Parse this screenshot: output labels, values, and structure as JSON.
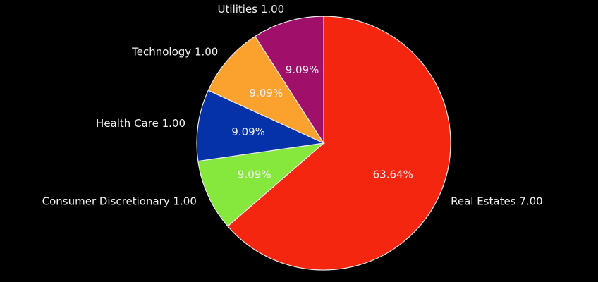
{
  "chart_data": {
    "type": "pie",
    "categories": [
      "Real Estates",
      "Consumer Discretionary",
      "Health Care",
      "Technology",
      "Utilities"
    ],
    "values": [
      7,
      1,
      1,
      1,
      1
    ],
    "value_labels": [
      "7.00",
      "1.00",
      "1.00",
      "1.00",
      "1.00"
    ],
    "percent_labels": [
      "63.64%",
      "9.09%",
      "9.09%",
      "9.09%",
      "9.09%"
    ],
    "colors": [
      "#f5260f",
      "#86e83d",
      "#0532a8",
      "#fba12e",
      "#a0106a"
    ]
  }
}
